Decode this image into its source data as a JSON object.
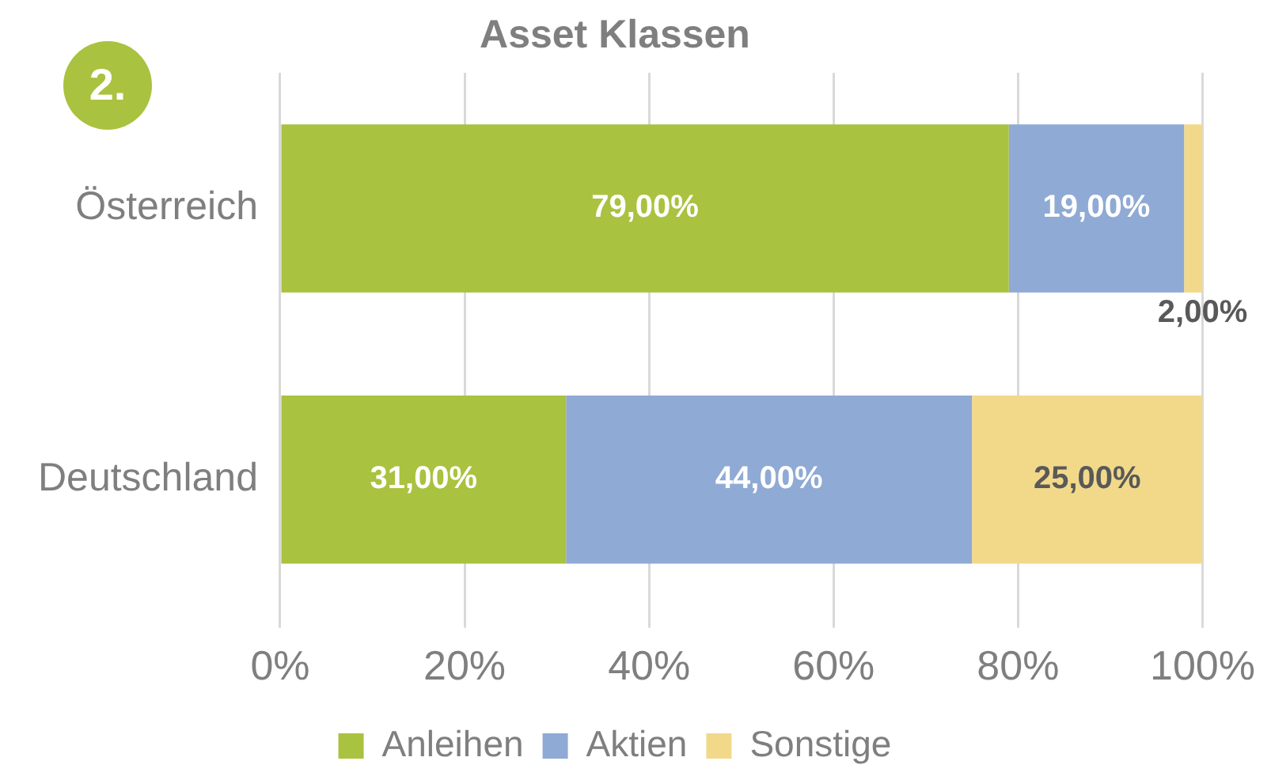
{
  "chart_data": {
    "type": "bar",
    "orientation": "horizontal",
    "stacked": true,
    "title": "Asset Klassen",
    "annotations": [
      "2."
    ],
    "categories": [
      "Österreich",
      "Deutschland"
    ],
    "series": [
      {
        "name": "Anleihen",
        "color": "#a9c23f",
        "values": [
          79,
          31
        ],
        "value_labels": [
          "79,00%",
          "31,00%"
        ]
      },
      {
        "name": "Aktien",
        "color": "#8faad4",
        "values": [
          19,
          44
        ],
        "value_labels": [
          "19,00%",
          "44,00%"
        ]
      },
      {
        "name": "Sonstige",
        "color": "#f2d98a",
        "values": [
          2,
          25
        ],
        "value_labels": [
          "2,00%",
          "25,00%"
        ]
      }
    ],
    "xlim": [
      0,
      100
    ],
    "xticks": [
      {
        "value": 0,
        "label": "0%"
      },
      {
        "value": 20,
        "label": "20%"
      },
      {
        "value": 40,
        "label": "40%"
      },
      {
        "value": 60,
        "label": "60%"
      },
      {
        "value": 80,
        "label": "80%"
      },
      {
        "value": 100,
        "label": "100%"
      }
    ],
    "grid": "x",
    "legend": "bottom"
  }
}
